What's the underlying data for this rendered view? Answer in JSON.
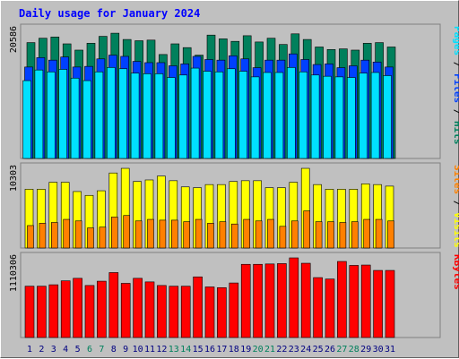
{
  "title": "Daily usage for January 2024",
  "colors": {
    "hits": "#00805c",
    "files": "#0040ff",
    "pages": "#00e0ff",
    "visits": "#ffff00",
    "sites": "#ff8000",
    "kbytes": "#ff0000",
    "weekend_label": "#00805c",
    "weekday_label": "#000080"
  },
  "chart_data": [
    {
      "type": "bar",
      "panel": "top",
      "max_label": "20586",
      "ylim": [
        0,
        20586
      ],
      "categories": [
        "1",
        "2",
        "3",
        "4",
        "5",
        "6",
        "7",
        "8",
        "9",
        "10",
        "11",
        "12",
        "13",
        "14",
        "15",
        "16",
        "17",
        "18",
        "19",
        "20",
        "21",
        "22",
        "23",
        "24",
        "25",
        "26",
        "27",
        "28",
        "29",
        "30",
        "31"
      ],
      "right_legend": [
        {
          "text": "Pages",
          "color": "#00e0ff"
        },
        {
          "text": " / ",
          "color": "#000000"
        },
        {
          "text": "Files",
          "color": "#0040ff"
        },
        {
          "text": " / ",
          "color": "#000000"
        },
        {
          "text": "Hits",
          "color": "#00805c"
        }
      ],
      "series": [
        {
          "name": "Hits",
          "values": [
            18500,
            19200,
            19400,
            18300,
            17300,
            18400,
            19500,
            20000,
            19000,
            18800,
            18900,
            16600,
            18300,
            17700,
            16500,
            19700,
            19100,
            18700,
            19600,
            18600,
            19200,
            18200,
            19900,
            19000,
            17800,
            17400,
            17500,
            17300,
            18400,
            18500,
            17800
          ]
        },
        {
          "name": "Files",
          "values": [
            14600,
            16100,
            15700,
            16200,
            14600,
            14700,
            15900,
            16500,
            16300,
            15500,
            15300,
            15300,
            14800,
            15100,
            16300,
            15800,
            15700,
            16400,
            15900,
            14500,
            15700,
            15700,
            16700,
            15800,
            15000,
            15100,
            14500,
            14800,
            15700,
            15400,
            14600
          ]
        },
        {
          "name": "Pages",
          "values": [
            13000,
            14700,
            14400,
            14800,
            13400,
            13000,
            14400,
            15100,
            14900,
            14200,
            14100,
            14100,
            13500,
            13900,
            15000,
            14500,
            14400,
            14900,
            14500,
            13600,
            14300,
            14300,
            15100,
            14400,
            13900,
            13700,
            13600,
            13500,
            14200,
            14300,
            13800
          ]
        }
      ]
    },
    {
      "type": "bar",
      "panel": "middle",
      "max_label": "10303",
      "ylim": [
        0,
        10303
      ],
      "categories": [
        "1",
        "2",
        "3",
        "4",
        "5",
        "6",
        "7",
        "8",
        "9",
        "10",
        "11",
        "12",
        "13",
        "14",
        "15",
        "16",
        "17",
        "18",
        "19",
        "20",
        "21",
        "22",
        "23",
        "24",
        "25",
        "26",
        "27",
        "28",
        "29",
        "30",
        "31"
      ],
      "right_legend": [
        {
          "text": "Sites",
          "color": "#ff8000"
        },
        {
          "text": " / ",
          "color": "#000000"
        },
        {
          "text": "Visits",
          "color": "#ffff00"
        }
      ],
      "series": [
        {
          "name": "Visits",
          "values": [
            7600,
            7600,
            8500,
            8500,
            7300,
            6800,
            7400,
            9700,
            10300,
            8600,
            8800,
            9300,
            8700,
            7900,
            7800,
            8200,
            8200,
            8600,
            8700,
            8700,
            7800,
            7800,
            8500,
            10300,
            8200,
            7600,
            7600,
            7600,
            8300,
            8200,
            8000
          ]
        },
        {
          "name": "Sites",
          "values": [
            2900,
            3200,
            3300,
            3700,
            3500,
            2600,
            2700,
            4000,
            4200,
            3500,
            3700,
            3600,
            3600,
            3400,
            3700,
            3200,
            3400,
            3100,
            3700,
            3500,
            3700,
            2800,
            3500,
            4800,
            3400,
            3400,
            3300,
            3400,
            3700,
            3700,
            3500
          ]
        }
      ]
    },
    {
      "type": "bar",
      "panel": "bottom",
      "max_label": "1110306",
      "ylim": [
        0,
        1110306
      ],
      "categories": [
        "1",
        "2",
        "3",
        "4",
        "5",
        "6",
        "7",
        "8",
        "9",
        "10",
        "11",
        "12",
        "13",
        "14",
        "15",
        "16",
        "17",
        "18",
        "19",
        "20",
        "21",
        "22",
        "23",
        "24",
        "25",
        "26",
        "27",
        "28",
        "29",
        "30",
        "31"
      ],
      "weekend_days": [
        6,
        7,
        13,
        14,
        20,
        21,
        27,
        28
      ],
      "right_legend": [
        {
          "text": "KBytes",
          "color": "#ff0000"
        }
      ],
      "series": [
        {
          "name": "KBytes",
          "values": [
            715000,
            715000,
            735000,
            790000,
            825000,
            725000,
            785000,
            905000,
            755000,
            825000,
            775000,
            725000,
            715000,
            715000,
            845000,
            705000,
            695000,
            760000,
            1020000,
            1020000,
            1025000,
            1030000,
            1110000,
            1035000,
            835000,
            815000,
            1060000,
            1005000,
            1010000,
            935000,
            935000
          ]
        }
      ]
    }
  ]
}
